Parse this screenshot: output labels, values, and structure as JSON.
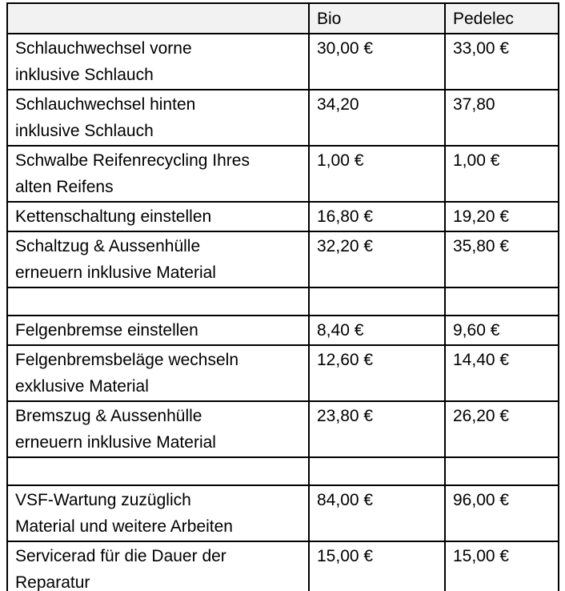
{
  "table": {
    "header": {
      "service": "",
      "bio": "Bio",
      "pedelec": "Pedelec"
    },
    "rows": [
      {
        "service": "Schlauchwechsel vorne\ninklusive Schlauch",
        "bio": "30,00 €",
        "pedelec": "33,00 €"
      },
      {
        "service": "Schlauchwechsel hinten\ninklusive Schlauch",
        "bio": "34,20",
        "pedelec": "37,80"
      },
      {
        "service": "Schwalbe Reifenrecycling Ihres\nalten Reifens",
        "bio": "1,00 €",
        "pedelec": "1,00 €"
      },
      {
        "service": "Kettenschaltung einstellen",
        "bio": "16,80 €",
        "pedelec": "19,20 €"
      },
      {
        "service": "Schaltzug & Aussenhülle\nerneuern inklusive Material",
        "bio": "32,20 €",
        "pedelec": "35,80 €"
      },
      {
        "service": "",
        "bio": "",
        "pedelec": ""
      },
      {
        "service": "Felgenbremse einstellen",
        "bio": "8,40 €",
        "pedelec": "9,60 €"
      },
      {
        "service": "Felgenbremsbeläge wechseln\nexklusive Material",
        "bio": "12,60 €",
        "pedelec": "14,40 €"
      },
      {
        "service": "Bremszug & Aussenhülle\nerneuern inklusive Material",
        "bio": "23,80 €",
        "pedelec": "26,20 €"
      },
      {
        "service": "",
        "bio": "",
        "pedelec": ""
      },
      {
        "service": "VSF-Wartung zuzüglich\nMaterial und weitere Arbeiten",
        "bio": "84,00 €",
        "pedelec": "96,00 €"
      },
      {
        "service": "Servicerad für die Dauer der\nReparatur",
        "bio": "15,00 €",
        "pedelec": "15,00 €"
      }
    ],
    "colors": {
      "header_bg": "#f2f2f2",
      "border": "#000000",
      "text": "#000000",
      "page_bg": "#ffffff"
    }
  }
}
